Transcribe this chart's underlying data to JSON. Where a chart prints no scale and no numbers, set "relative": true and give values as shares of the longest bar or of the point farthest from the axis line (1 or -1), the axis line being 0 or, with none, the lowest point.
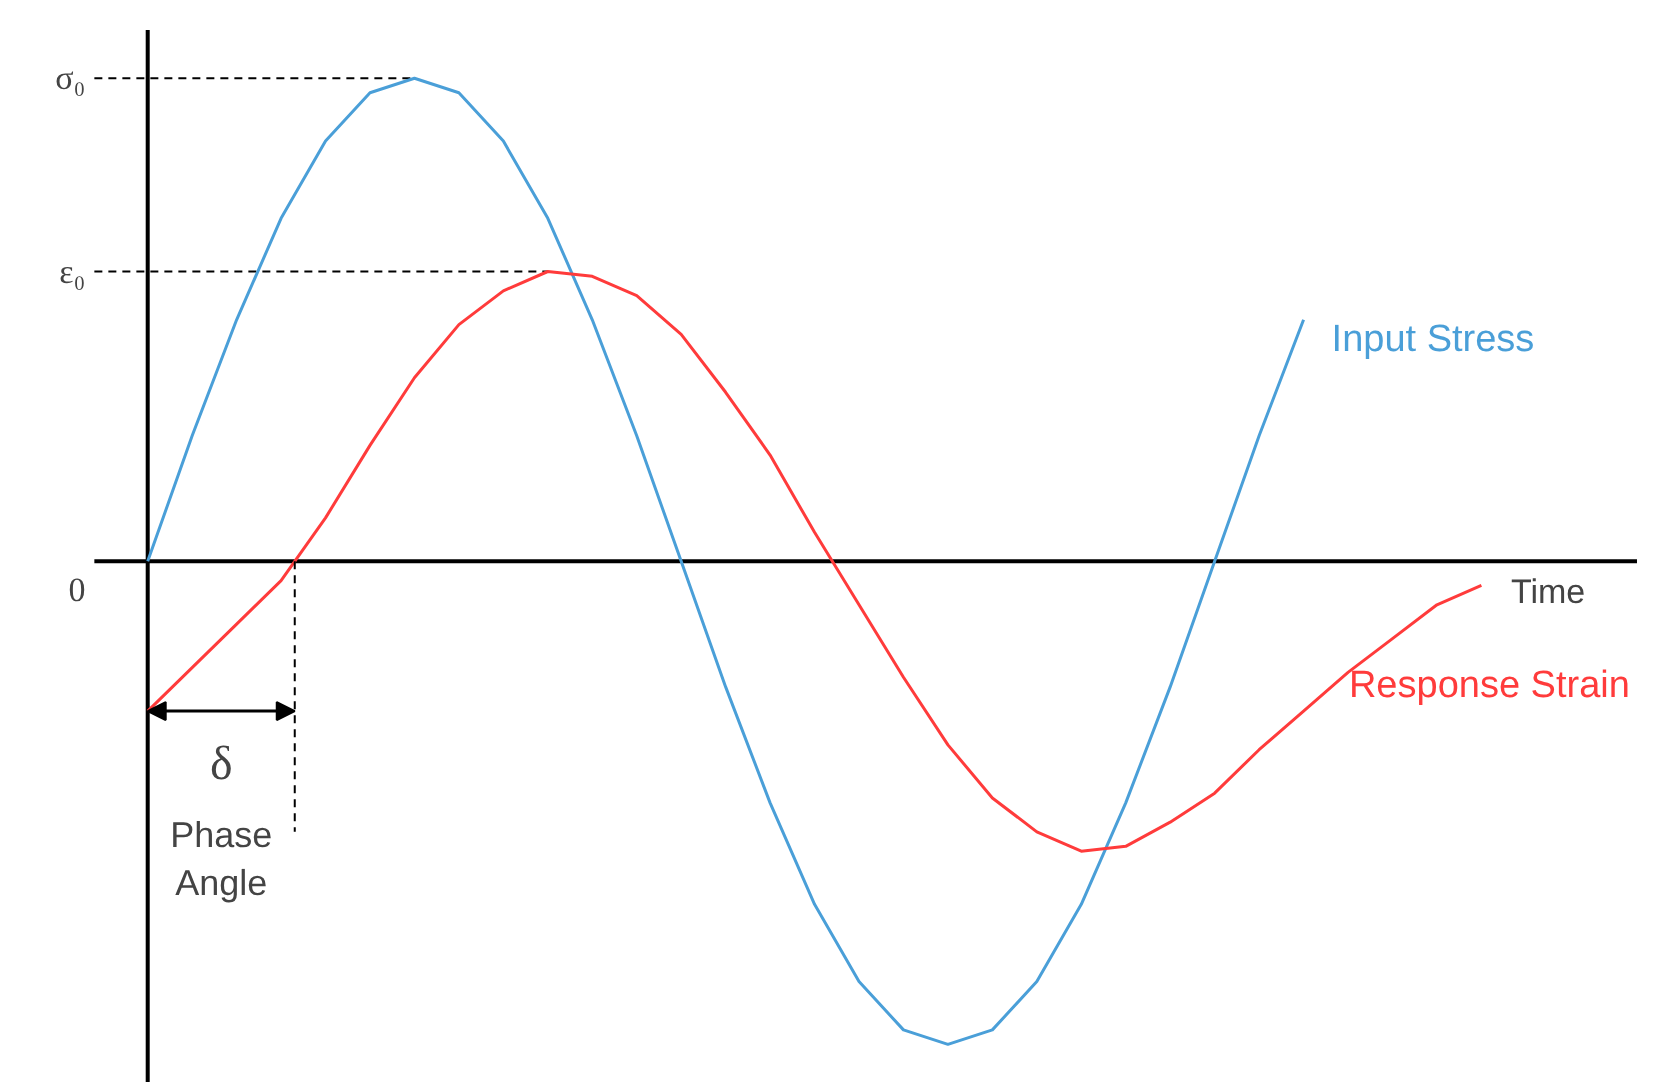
{
  "chart_data": {
    "type": "line",
    "relative": true,
    "xlabel": "Time",
    "categories": [
      null,
      null,
      null,
      null,
      null,
      null,
      null,
      null,
      null,
      null,
      null,
      null,
      null,
      null,
      null,
      null,
      null,
      null,
      null,
      null,
      null,
      null,
      null,
      null,
      null,
      null,
      null,
      null,
      null,
      null,
      null
    ],
    "series": [
      {
        "name": "Input Stress",
        "color": "#4a9fd8",
        "values": [
          0,
          0.26,
          0.5,
          0.71,
          0.87,
          0.97,
          1,
          0.97,
          0.87,
          0.71,
          0.5,
          0.26,
          0,
          -0.26,
          -0.5,
          -0.71,
          -0.87,
          -0.97,
          -1,
          -0.97,
          -0.87,
          -0.71,
          -0.5,
          -0.26,
          0,
          0.26,
          0.5,
          null,
          null,
          null,
          null
        ]
      },
      {
        "name": "Response Strain",
        "color": "#ff3b3b",
        "values": [
          -0.31,
          -0.22,
          -0.13,
          -0.04,
          0.09,
          0.24,
          0.38,
          0.49,
          0.56,
          0.6,
          0.59,
          0.55,
          0.47,
          0.35,
          0.22,
          0.06,
          -0.09,
          -0.24,
          -0.38,
          -0.49,
          -0.56,
          -0.6,
          -0.59,
          -0.54,
          -0.48,
          -0.39,
          -0.31,
          -0.23,
          -0.16,
          -0.09,
          -0.05
        ]
      }
    ],
    "ref_lines": [
      {
        "axis": "y",
        "value": 1,
        "label": "σ₀",
        "color": "#000000",
        "line_style": "dashed"
      },
      {
        "axis": "y",
        "value": 0.6,
        "label": "ε₀",
        "color": "#000000",
        "line_style": "dashed"
      },
      {
        "axis": "y",
        "value": 0,
        "label": "0",
        "color": "#000000",
        "line_style": "solid"
      }
    ],
    "annotations": [
      "δ",
      "Phase Angle"
    ]
  }
}
